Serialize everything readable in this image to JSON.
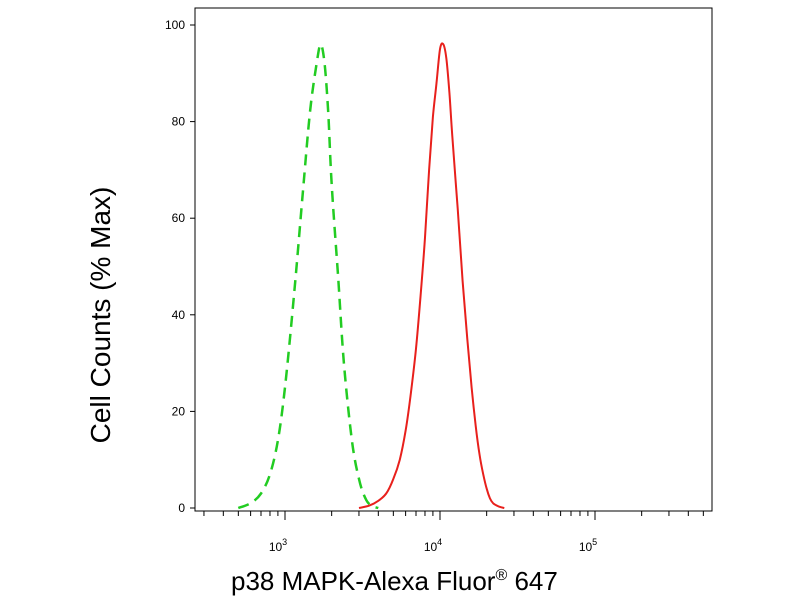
{
  "chart_data": {
    "type": "line",
    "xscale": "log",
    "xlim": [
      250,
      500000
    ],
    "ylim": [
      0,
      105
    ],
    "grid": false,
    "xlabel": {
      "main": "p38 MAPK-Alexa Fluor",
      "registered_mark": "®",
      "suffix": " 647"
    },
    "ylabel": "Cell Counts (% Max)",
    "y_ticks": [
      0,
      20,
      40,
      60,
      80,
      100
    ],
    "y_tick_labels": [
      "0",
      "20",
      "40",
      "60",
      "80",
      "100"
    ],
    "x_major_ticks": [
      {
        "value": 1000,
        "base": "10",
        "exp": "3"
      },
      {
        "value": 10000,
        "base": "10",
        "exp": "4"
      },
      {
        "value": 100000,
        "base": "10",
        "exp": "5"
      }
    ],
    "series": [
      {
        "color": "#22cc22",
        "style": "dashed",
        "x": [
          500,
          600,
          700,
          800,
          900,
          1000,
          1150,
          1300,
          1450,
          1600,
          1700,
          1800,
          1900,
          2000,
          2200,
          2400,
          2700,
          3000,
          3300,
          3600,
          4000
        ],
        "y": [
          0,
          1,
          3,
          7,
          14,
          25,
          45,
          65,
          82,
          92,
          96,
          92,
          82,
          67,
          48,
          30,
          14,
          6,
          2,
          0.5,
          0
        ]
      },
      {
        "color": "#e8201c",
        "style": "solid",
        "x": [
          3000,
          3500,
          4000,
          4500,
          5000,
          5500,
          6000,
          6500,
          7000,
          7500,
          8000,
          8500,
          9000,
          9500,
          10000,
          10500,
          11000,
          11500,
          12000,
          13000,
          14000,
          15000,
          16000,
          17000,
          18000,
          19000,
          20000,
          21000,
          22000,
          24000,
          26000
        ],
        "y": [
          0,
          0.5,
          1.5,
          3,
          6,
          10,
          16,
          24,
          33,
          44,
          56,
          70,
          81,
          88,
          95,
          96,
          93,
          86,
          77,
          62,
          47,
          35,
          25,
          17,
          11,
          7,
          4,
          2,
          1,
          0.3,
          0
        ]
      }
    ]
  }
}
